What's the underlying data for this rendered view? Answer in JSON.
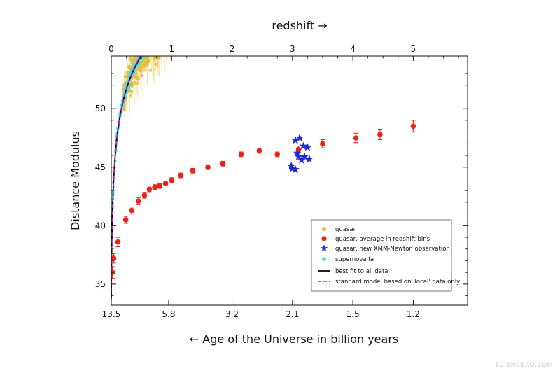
{
  "chart_data": {
    "type": "scatter",
    "top_axis": {
      "label": "redshift →",
      "ticks": [
        0,
        1,
        2,
        3,
        4,
        5
      ],
      "range": [
        0,
        5.9
      ]
    },
    "bottom_axis": {
      "label": "← Age of the Universe in billion years",
      "ticks": [
        {
          "label": "13.5",
          "redshift": 0
        },
        {
          "label": "5.8",
          "redshift": 0.95
        },
        {
          "label": "3.2",
          "redshift": 2.0
        },
        {
          "label": "2.1",
          "redshift": 3.0
        },
        {
          "label": "1.5",
          "redshift": 4.0
        },
        {
          "label": "1.2",
          "redshift": 5.0
        }
      ]
    },
    "y_axis": {
      "label": "Distance Modulus",
      "ticks": [
        35,
        40,
        45,
        50
      ],
      "range": [
        33.2,
        54.5
      ]
    },
    "legend": {
      "placement": "lower-right",
      "entries": [
        {
          "key": "quasar",
          "label": "quasar"
        },
        {
          "key": "quasar_bins",
          "label": "quasar, average in redshift bins"
        },
        {
          "key": "xmm",
          "label": "quasar, new XMM-Newton observation"
        },
        {
          "key": "supernova",
          "label": "supernova Ia"
        },
        {
          "key": "best_fit",
          "label": "best fit to all data"
        },
        {
          "key": "standard_model",
          "label": "standard model based on 'local' data only"
        }
      ]
    },
    "colors": {
      "quasar": "#e8c43c",
      "quasar_edge": "#c9a21f",
      "quasar_bins": "#e8231a",
      "xmm": "#1e2ad6",
      "supernova": "#3fe0e6",
      "best_fit": "#000000",
      "standard_model": "#cc18c8",
      "scatter_band": "#a9c9d8"
    },
    "series": [
      {
        "key": "quasar_bins",
        "points": [
          {
            "x": 0.02,
            "y": 36.0,
            "err": 0.5
          },
          {
            "x": 0.04,
            "y": 37.2,
            "err": 0.4
          },
          {
            "x": 0.11,
            "y": 38.6,
            "err": 0.4
          },
          {
            "x": 0.24,
            "y": 40.5,
            "err": 0.3
          },
          {
            "x": 0.34,
            "y": 41.3,
            "err": 0.3
          },
          {
            "x": 0.45,
            "y": 42.1,
            "err": 0.3
          },
          {
            "x": 0.55,
            "y": 42.6,
            "err": 0.25
          },
          {
            "x": 0.63,
            "y": 43.1,
            "err": 0.2
          },
          {
            "x": 0.72,
            "y": 43.3,
            "err": 0.2
          },
          {
            "x": 0.8,
            "y": 43.4,
            "err": 0.2
          },
          {
            "x": 0.9,
            "y": 43.6,
            "err": 0.2
          },
          {
            "x": 1.0,
            "y": 43.9,
            "err": 0.2
          },
          {
            "x": 1.15,
            "y": 44.3,
            "err": 0.2
          },
          {
            "x": 1.35,
            "y": 44.7,
            "err": 0.2
          },
          {
            "x": 1.6,
            "y": 45.0,
            "err": 0.2
          },
          {
            "x": 1.85,
            "y": 45.3,
            "err": 0.2
          },
          {
            "x": 2.15,
            "y": 46.1,
            "err": 0.2
          },
          {
            "x": 2.45,
            "y": 46.4,
            "err": 0.2
          },
          {
            "x": 2.75,
            "y": 46.1,
            "err": 0.2
          },
          {
            "x": 3.1,
            "y": 46.5,
            "err": 0.3
          },
          {
            "x": 3.5,
            "y": 47.0,
            "err": 0.35
          },
          {
            "x": 4.05,
            "y": 47.5,
            "err": 0.4
          },
          {
            "x": 4.45,
            "y": 47.8,
            "err": 0.45
          },
          {
            "x": 5.0,
            "y": 48.5,
            "err": 0.5
          }
        ]
      },
      {
        "key": "xmm",
        "points": [
          {
            "x": 3.0,
            "y": 44.9
          },
          {
            "x": 3.05,
            "y": 47.3
          },
          {
            "x": 3.08,
            "y": 46.2
          },
          {
            "x": 3.1,
            "y": 45.9
          },
          {
            "x": 3.12,
            "y": 47.5
          },
          {
            "x": 3.15,
            "y": 45.6
          },
          {
            "x": 3.18,
            "y": 46.8
          },
          {
            "x": 3.2,
            "y": 45.9
          },
          {
            "x": 3.25,
            "y": 46.7
          },
          {
            "x": 3.28,
            "y": 45.7
          },
          {
            "x": 2.98,
            "y": 45.1
          },
          {
            "x": 3.05,
            "y": 44.8
          }
        ]
      }
    ],
    "curves": [
      {
        "key": "best_fit",
        "model": "best_fit"
      },
      {
        "key": "standard_model",
        "model": "standard_model"
      }
    ]
  },
  "watermark": "SCIENCEAQ.COM"
}
